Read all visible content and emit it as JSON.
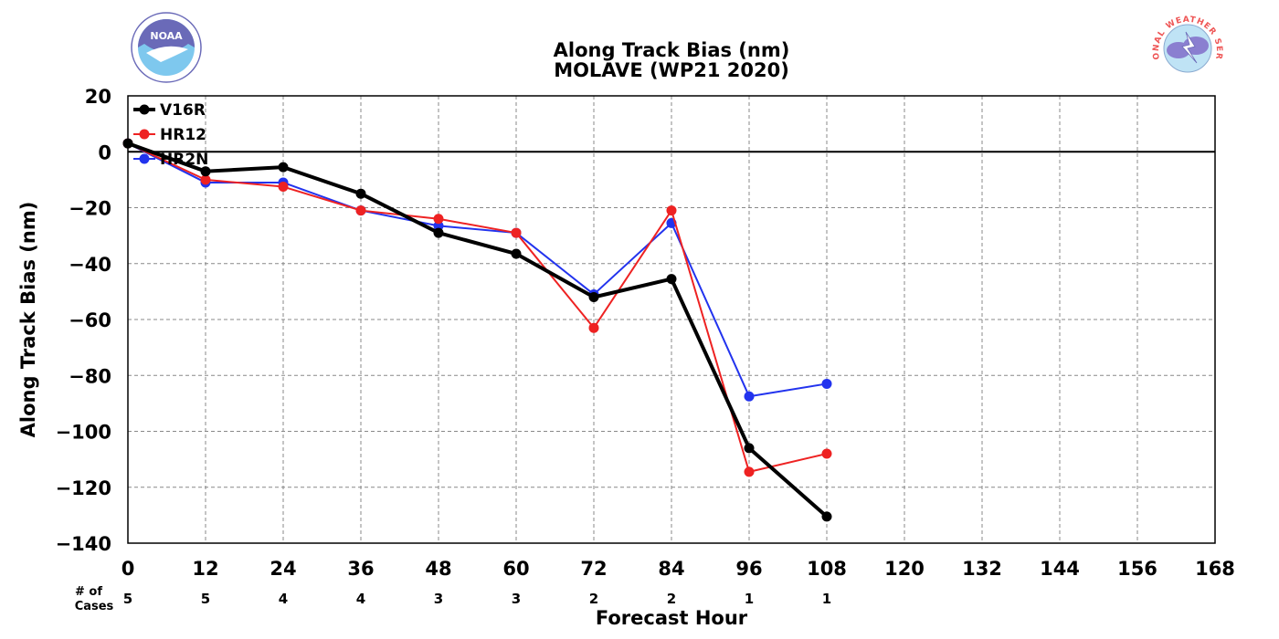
{
  "logos": {
    "left_text": "NOAA",
    "right_text": "NATIONAL WEATHER SERVICE"
  },
  "chart_data": {
    "type": "line",
    "title": "Along Track Bias (nm)",
    "subtitle": "MOLAVE (WP21 2020)",
    "xlabel": "Forecast Hour",
    "ylabel": "Along Track Bias (nm)",
    "xlim": [
      0,
      168
    ],
    "ylim": [
      -140,
      20
    ],
    "xticks": [
      0,
      12,
      24,
      36,
      48,
      60,
      72,
      84,
      96,
      108,
      120,
      132,
      144,
      156,
      168
    ],
    "yticks": [
      20,
      0,
      -20,
      -40,
      -60,
      -80,
      -100,
      -120,
      -140
    ],
    "ytick_labels": [
      "20",
      "0",
      "−20",
      "−40",
      "−60",
      "−80",
      "−100",
      "−120",
      "−140"
    ],
    "grid": true,
    "legend_placement": "top-left",
    "cases_header": [
      "# of",
      "Cases"
    ],
    "cases": [
      {
        "x": 0,
        "n": "5"
      },
      {
        "x": 12,
        "n": "5"
      },
      {
        "x": 24,
        "n": "4"
      },
      {
        "x": 36,
        "n": "4"
      },
      {
        "x": 48,
        "n": "3"
      },
      {
        "x": 60,
        "n": "3"
      },
      {
        "x": 72,
        "n": "2"
      },
      {
        "x": 84,
        "n": "2"
      },
      {
        "x": 96,
        "n": "1"
      },
      {
        "x": 108,
        "n": "1"
      }
    ],
    "series": [
      {
        "name": "V16R",
        "color": "#000000",
        "x": [
          0,
          12,
          24,
          36,
          48,
          60,
          72,
          84,
          96,
          108
        ],
        "values": [
          3,
          -7,
          -5.5,
          -15,
          -29,
          -36.5,
          -52,
          -45.5,
          -106,
          -130.5
        ]
      },
      {
        "name": "HR12",
        "color": "#ee2222",
        "x": [
          0,
          12,
          24,
          36,
          48,
          60,
          72,
          84,
          96,
          108
        ],
        "values": [
          3,
          -10,
          -12.5,
          -21,
          -24,
          -29,
          -63,
          -21,
          -114.5,
          -108
        ]
      },
      {
        "name": "HR2N",
        "color": "#2233ee",
        "x": [
          0,
          12,
          24,
          36,
          48,
          60,
          72,
          84,
          96,
          108
        ],
        "values": [
          3,
          -11,
          -11,
          -21,
          -26.5,
          -29,
          -51,
          -25.5,
          -87.5,
          -83
        ]
      }
    ]
  }
}
